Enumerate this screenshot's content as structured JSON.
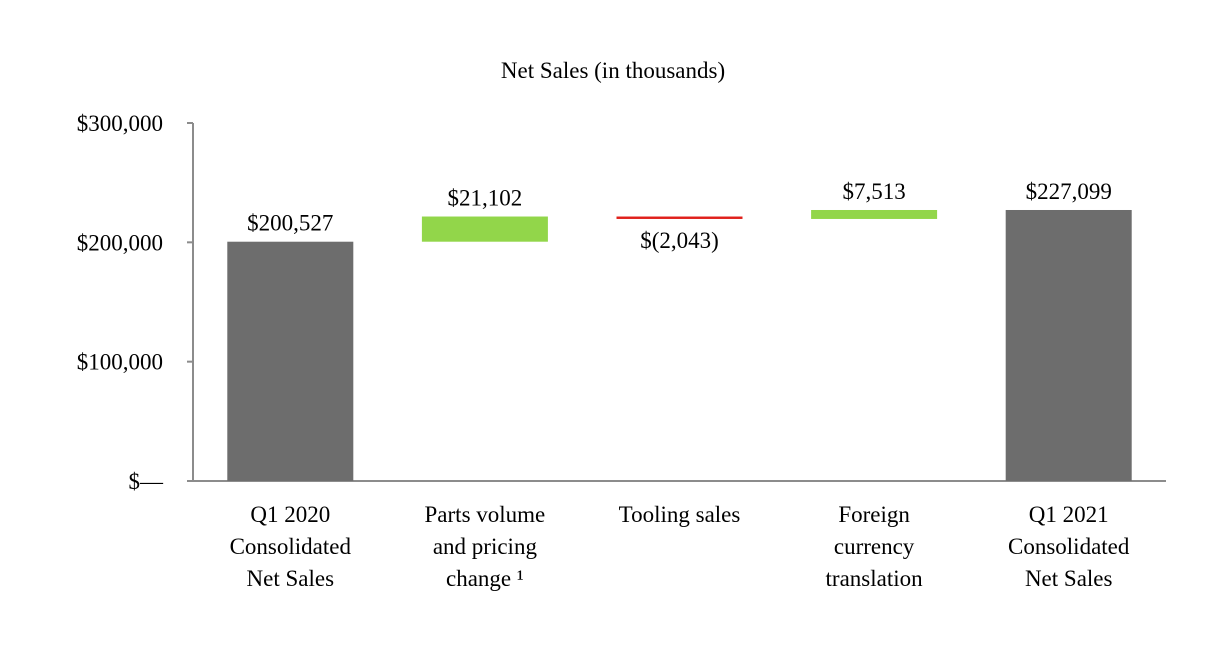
{
  "chart_data": {
    "type": "waterfall",
    "title": "Net Sales (in thousands)",
    "categories": [
      [
        "Q1 2020",
        "Consolidated",
        "Net Sales"
      ],
      [
        "Parts volume",
        "and pricing",
        "change ¹"
      ],
      [
        "Tooling sales"
      ],
      [
        "Foreign",
        "currency",
        "translation"
      ],
      [
        "Q1 2021",
        "Consolidated",
        "Net Sales"
      ]
    ],
    "steps": [
      {
        "kind": "total",
        "value": 200527,
        "label": "$200,527",
        "color": "#6d6d6d"
      },
      {
        "kind": "delta",
        "value": 21102,
        "label": "$21,102",
        "color": "#92d64a"
      },
      {
        "kind": "delta",
        "value": -2043,
        "label": "$(2,043)",
        "color": "#e0201b"
      },
      {
        "kind": "delta",
        "value": 7513,
        "label": "$7,513",
        "color": "#92d64a"
      },
      {
        "kind": "total",
        "value": 227099,
        "label": "$227,099",
        "color": "#6d6d6d"
      }
    ],
    "y_ticks": [
      {
        "value": 0,
        "label": "$—"
      },
      {
        "value": 100000,
        "label": "$100,000"
      },
      {
        "value": 200000,
        "label": "$200,000"
      },
      {
        "value": 300000,
        "label": "$300,000"
      }
    ],
    "ylim": [
      0,
      300000
    ],
    "grid": false,
    "legend": "none"
  }
}
